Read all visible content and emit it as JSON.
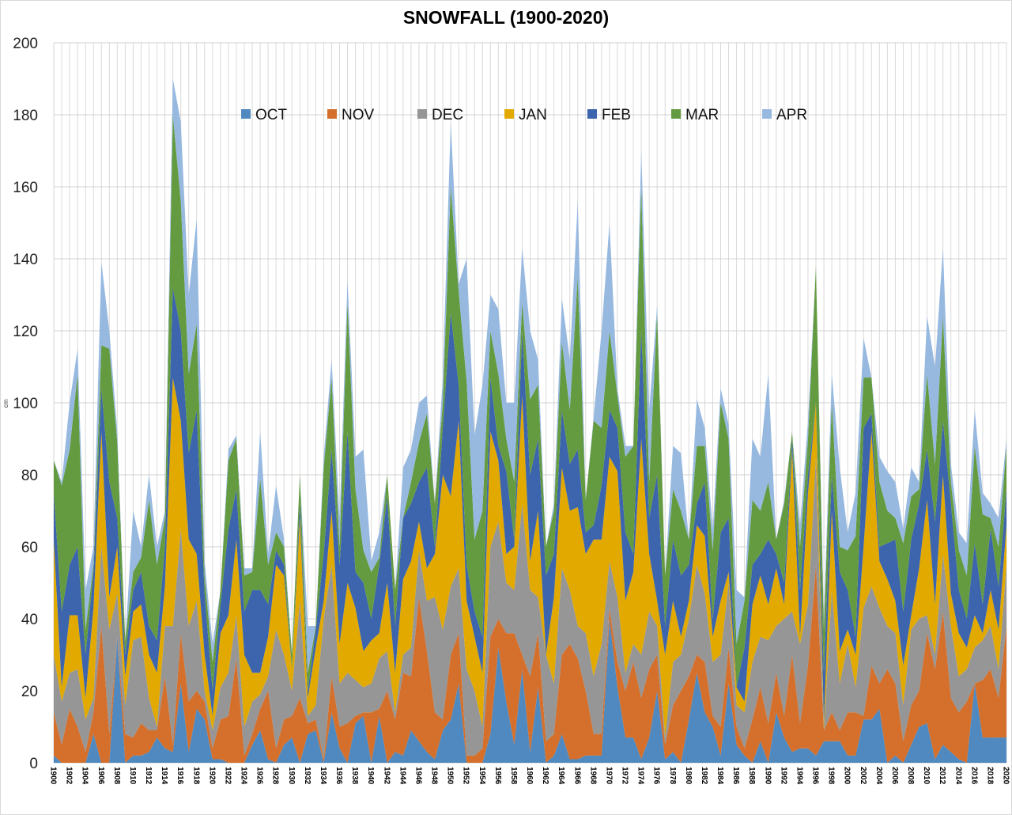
{
  "chart_data": {
    "type": "area",
    "stacked": true,
    "title": "SNOWFALL (1900-2020)",
    "xlabel": "",
    "ylabel": "cm",
    "xlim": [
      1900,
      2020
    ],
    "ylim": [
      0,
      200
    ],
    "yticks": [
      0,
      20,
      40,
      60,
      80,
      100,
      120,
      140,
      160,
      180,
      200
    ],
    "xtick_step": 2,
    "grid": {
      "horizontal": true,
      "vertical": true
    },
    "legend_placement": "top-center",
    "x_start": 1900,
    "x_end": 2020,
    "series": [
      {
        "name": "OCT",
        "color": "#5089bf",
        "values": [
          2,
          0,
          0,
          0,
          0,
          8,
          0,
          0,
          35,
          0,
          2,
          2,
          3,
          7,
          4,
          3,
          22,
          3,
          15,
          12,
          1,
          1,
          0,
          0,
          0,
          5,
          9,
          1,
          0,
          5,
          7,
          0,
          8,
          9,
          0,
          14,
          4,
          0,
          11,
          13,
          0,
          13,
          0,
          3,
          2,
          9,
          6,
          3,
          1,
          9,
          12,
          22,
          0,
          0,
          0,
          8,
          32,
          17,
          5,
          26,
          3,
          21,
          0,
          2,
          8,
          1,
          1,
          2,
          2,
          2,
          40,
          21,
          7,
          7,
          1,
          7,
          20,
          1,
          3,
          0,
          12,
          25,
          14,
          10,
          2,
          22,
          5,
          2,
          0,
          6,
          0,
          14,
          7,
          3,
          4,
          4,
          2,
          6,
          6,
          6,
          2,
          2,
          12,
          12,
          15,
          0,
          2,
          0,
          5,
          10,
          11,
          1,
          5,
          3,
          1,
          0,
          22,
          7,
          7,
          7,
          7
        ]
      },
      {
        "name": "NOV",
        "color": "#d4702c",
        "values": [
          12,
          5,
          15,
          10,
          3,
          6,
          38,
          8,
          0,
          8,
          5,
          9,
          6,
          2,
          20,
          2,
          14,
          14,
          5,
          5,
          3,
          11,
          13,
          29,
          2,
          3,
          6,
          19,
          4,
          7,
          6,
          18,
          3,
          3,
          1,
          10,
          6,
          11,
          2,
          1,
          14,
          2,
          20,
          9,
          23,
          15,
          40,
          28,
          13,
          3,
          18,
          14,
          2,
          2,
          4,
          27,
          8,
          19,
          31,
          4,
          21,
          15,
          6,
          6,
          22,
          32,
          28,
          18,
          6,
          6,
          3,
          7,
          13,
          21,
          17,
          19,
          10,
          4,
          13,
          20,
          12,
          5,
          14,
          3,
          8,
          10,
          5,
          2,
          12,
          15,
          11,
          11,
          6,
          27,
          7,
          23,
          53,
          3,
          8,
          3,
          12,
          12,
          1,
          15,
          7,
          26,
          20,
          6,
          11,
          10,
          25,
          25,
          37,
          15,
          13,
          17,
          0,
          16,
          19,
          11,
          31
        ]
      },
      {
        "name": "DEC",
        "color": "#969696",
        "values": [
          16,
          12,
          10,
          16,
          9,
          4,
          22,
          29,
          12,
          8,
          27,
          24,
          9,
          1,
          14,
          33,
          29,
          21,
          25,
          3,
          5,
          9,
          12,
          12,
          8,
          9,
          4,
          4,
          33,
          18,
          7,
          27,
          2,
          4,
          39,
          31,
          12,
          14,
          10,
          7,
          8,
          14,
          11,
          2,
          5,
          8,
          13,
          14,
          32,
          25,
          19,
          18,
          24,
          18,
          6,
          25,
          27,
          14,
          12,
          42,
          24,
          10,
          24,
          14,
          24,
          15,
          9,
          16,
          16,
          25,
          13,
          18,
          5,
          5,
          12,
          16,
          8,
          2,
          12,
          10,
          16,
          25,
          19,
          15,
          20,
          18,
          6,
          10,
          16,
          14,
          23,
          13,
          27,
          12,
          22,
          17,
          30,
          0,
          34,
          13,
          19,
          7,
          30,
          22,
          21,
          12,
          14,
          10,
          21,
          20,
          5,
          4,
          16,
          20,
          10,
          9,
          10,
          11,
          12,
          8,
          17
        ]
      },
      {
        "name": "JAN",
        "color": "#e2aa00",
        "values": [
          32,
          4,
          16,
          15,
          6,
          25,
          32,
          9,
          13,
          8,
          8,
          9,
          12,
          15,
          11,
          69,
          30,
          24,
          13,
          10,
          4,
          15,
          16,
          21,
          20,
          8,
          6,
          11,
          18,
          22,
          6,
          23,
          5,
          16,
          5,
          15,
          11,
          25,
          20,
          10,
          12,
          7,
          19,
          11,
          21,
          24,
          8,
          9,
          12,
          43,
          25,
          41,
          19,
          15,
          15,
          32,
          17,
          8,
          12,
          30,
          8,
          24,
          0,
          24,
          28,
          22,
          33,
          22,
          38,
          29,
          29,
          35,
          20,
          20,
          60,
          16,
          7,
          23,
          17,
          5,
          5,
          11,
          16,
          7,
          15,
          3,
          5,
          3,
          16,
          17,
          10,
          16,
          4,
          45,
          2,
          31,
          15,
          2,
          22,
          9,
          4,
          9,
          17,
          43,
          13,
          13,
          9,
          11,
          4,
          14,
          32,
          14,
          22,
          9,
          12,
          6,
          9,
          2,
          10,
          11,
          11
        ]
      },
      {
        "name": "FEB",
        "color": "#3c65ad",
        "values": [
          13,
          21,
          14,
          19,
          12,
          10,
          12,
          32,
          8,
          6,
          6,
          9,
          8,
          9,
          11,
          25,
          25,
          24,
          40,
          17,
          7,
          8,
          24,
          14,
          12,
          23,
          23,
          9,
          4,
          3,
          0,
          4,
          2,
          5,
          13,
          17,
          22,
          42,
          10,
          19,
          6,
          19,
          24,
          13,
          17,
          16,
          11,
          28,
          2,
          13,
          51,
          10,
          10,
          7,
          10,
          15,
          4,
          23,
          2,
          18,
          24,
          20,
          22,
          12,
          16,
          13,
          16,
          6,
          4,
          15,
          13,
          12,
          19,
          5,
          30,
          10,
          35,
          8,
          17,
          17,
          10,
          6,
          15,
          5,
          19,
          15,
          0,
          15,
          11,
          6,
          18,
          4,
          6,
          3,
          13,
          5,
          0,
          14,
          10,
          22,
          11,
          5,
          33,
          5,
          4,
          10,
          17,
          15,
          21,
          18,
          14,
          23,
          15,
          25,
          12,
          8,
          20,
          8,
          17,
          12,
          10
        ]
      },
      {
        "name": "MAR",
        "color": "#659b40",
        "values": [
          9,
          35,
          32,
          48,
          7,
          2,
          12,
          37,
          21,
          4,
          5,
          4,
          35,
          21,
          8,
          48,
          36,
          22,
          24,
          5,
          8,
          4,
          19,
          14,
          10,
          5,
          31,
          11,
          5,
          5,
          4,
          8,
          5,
          1,
          24,
          20,
          5,
          36,
          23,
          9,
          13,
          2,
          6,
          10,
          0,
          6,
          11,
          15,
          12,
          7,
          35,
          26,
          51,
          20,
          35,
          13,
          20,
          9,
          16,
          8,
          21,
          15,
          8,
          12,
          19,
          15,
          48,
          9,
          29,
          16,
          22,
          9,
          21,
          30,
          40,
          10,
          45,
          14,
          14,
          18,
          7,
          16,
          10,
          19,
          36,
          22,
          12,
          13,
          18,
          12,
          16,
          4,
          22,
          2,
          12,
          10,
          38,
          12,
          20,
          7,
          11,
          28,
          14,
          10,
          18,
          9,
          6,
          19,
          12,
          4,
          21,
          16,
          29,
          6,
          11,
          12,
          27,
          25,
          3,
          11,
          12
        ]
      },
      {
        "name": "APR",
        "color": "#97b9e0",
        "values": [
          0,
          1,
          13,
          7,
          11,
          5,
          23,
          5,
          3,
          0,
          17,
          3,
          7,
          5,
          2,
          10,
          22,
          22,
          29,
          4,
          5,
          0,
          3,
          1,
          2,
          1,
          13,
          3,
          13,
          2,
          0,
          0,
          13,
          0,
          3,
          5,
          8,
          6,
          9,
          28,
          3,
          7,
          0,
          0,
          14,
          9,
          11,
          5,
          0,
          7,
          18,
          2,
          34,
          29,
          35,
          10,
          18,
          10,
          22,
          15,
          19,
          7,
          0,
          2,
          12,
          14,
          21,
          0,
          1,
          27,
          30,
          2,
          3,
          0,
          10,
          20,
          2,
          0,
          12,
          16,
          0,
          13,
          5,
          6,
          4,
          4,
          15,
          1,
          17,
          15,
          30,
          0,
          1,
          0,
          6,
          5,
          0,
          3,
          8,
          22,
          5,
          12,
          11,
          0,
          7,
          11,
          10,
          4,
          8,
          2,
          16,
          27,
          19,
          5,
          5,
          9,
          10,
          6,
          4,
          8,
          2
        ]
      }
    ]
  }
}
